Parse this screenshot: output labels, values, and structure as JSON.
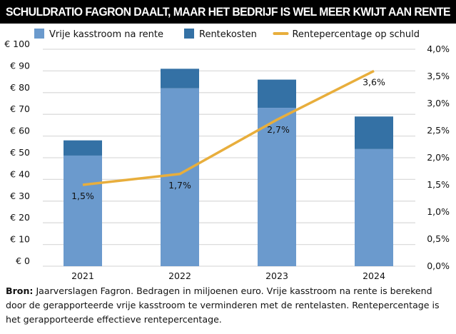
{
  "title": "SCHULDRATIO FAGRON DAALT, MAAR HET BEDRIJF IS WEL MEER KWIJT AAN RENTE",
  "source_label": "Bron:",
  "source_text": " Jaarverslagen Fagron. Bedragen in miljoenen euro. Vrije kasstroom na rente is berekend door de gerapporteerde vrije kasstroom te verminderen met de rentelasten. Rentepercentage is het gerapporteerde effectieve rentepercentage.",
  "chart_data": {
    "type": "bar",
    "stacked": true,
    "categories": [
      "2021",
      "2022",
      "2023",
      "2024"
    ],
    "series": [
      {
        "name": "Vrije kasstroom na rente",
        "values": [
          51,
          82,
          73,
          54
        ],
        "color": "#6b9acd",
        "axis": "left"
      },
      {
        "name": "Rentekosten",
        "values": [
          7,
          9,
          13,
          15
        ],
        "color": "#3471a5",
        "axis": "left"
      },
      {
        "name": "Rentepercentage op schuld",
        "type": "line",
        "values": [
          1.5,
          1.7,
          2.7,
          3.6
        ],
        "labels": [
          "1,5%",
          "1,7%",
          "2,7%",
          "3,6%"
        ],
        "color": "#e8ae3c",
        "axis": "right"
      }
    ],
    "ylim": [
      0,
      100
    ],
    "y_ticks": [
      "€ 0",
      "€ 10",
      "€ 20",
      "€ 30",
      "€ 40",
      "€ 50",
      "€ 60",
      "€ 70",
      "€ 80",
      "€ 90",
      "€ 100"
    ],
    "y2lim": [
      0,
      4
    ],
    "y2_ticks": [
      "0,0%",
      "0,5%",
      "1,0%",
      "1,5%",
      "2,0%",
      "2,5%",
      "3,0%",
      "3,5%",
      "4,0%"
    ],
    "grid": true,
    "legend": "top"
  }
}
